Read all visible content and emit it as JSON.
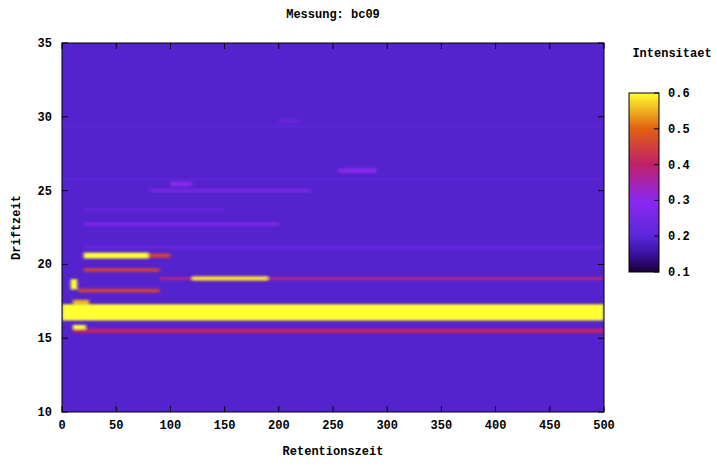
{
  "chart_data": {
    "type": "heatmap",
    "title": "Messung: bc09",
    "x_label": "Retentionszeit",
    "y_label": "Driftzeit",
    "colorbar_label": "Intensitaet",
    "xlim": [
      0,
      500
    ],
    "ylim": [
      10,
      35
    ],
    "xticks": [
      0,
      50,
      100,
      150,
      200,
      250,
      300,
      350,
      400,
      450,
      500
    ],
    "yticks": [
      10,
      15,
      20,
      25,
      30,
      35
    ],
    "colorbar_range": [
      0.1,
      0.6
    ],
    "colorbar_ticks": [
      0.1,
      0.2,
      0.3,
      0.4,
      0.5,
      0.6
    ],
    "background": 0.19,
    "cells": [
      {
        "x": [
          0,
          500
        ],
        "y": [
          25.75,
          25.85
        ],
        "value": 0.22
      },
      {
        "x": [
          0,
          500
        ],
        "y": [
          29.3,
          29.4
        ],
        "value": 0.22
      },
      {
        "x": [
          200,
          220
        ],
        "y": [
          29.6,
          29.8
        ],
        "value": 0.24
      },
      {
        "x": [
          20,
          500
        ],
        "y": [
          21.1,
          21.3
        ],
        "value": 0.23
      },
      {
        "x": [
          20,
          150
        ],
        "y": [
          23.6,
          23.8
        ],
        "value": 0.23
      },
      {
        "x": [
          20,
          200
        ],
        "y": [
          22.6,
          22.85
        ],
        "value": 0.27
      },
      {
        "x": [
          80,
          230
        ],
        "y": [
          24.9,
          25.1
        ],
        "value": 0.27
      },
      {
        "x": [
          100,
          120
        ],
        "y": [
          25.3,
          25.6
        ],
        "value": 0.3
      },
      {
        "x": [
          255,
          290
        ],
        "y": [
          26.2,
          26.5
        ],
        "value": 0.3
      },
      {
        "x": [
          10,
          500
        ],
        "y": [
          15.35,
          15.65
        ],
        "value": 0.4
      },
      {
        "x": [
          10,
          22
        ],
        "y": [
          15.6,
          15.9
        ],
        "value": 0.6
      },
      {
        "x": [
          15,
          90
        ],
        "y": [
          18.1,
          18.35
        ],
        "value": 0.45
      },
      {
        "x": [
          20,
          90
        ],
        "y": [
          19.5,
          19.75
        ],
        "value": 0.45
      },
      {
        "x": [
          20,
          80
        ],
        "y": [
          20.4,
          20.8
        ],
        "value": 0.6
      },
      {
        "x": [
          80,
          100
        ],
        "y": [
          20.45,
          20.75
        ],
        "value": 0.45
      },
      {
        "x": [
          90,
          500
        ],
        "y": [
          18.95,
          19.15
        ],
        "value": 0.38
      },
      {
        "x": [
          120,
          190
        ],
        "y": [
          18.9,
          19.2
        ],
        "value": 0.58
      },
      {
        "x": [
          8,
          14
        ],
        "y": [
          18.3,
          19.0
        ],
        "value": 0.6
      },
      {
        "x": [
          10,
          25
        ],
        "y": [
          17.3,
          17.6
        ],
        "value": 0.55
      },
      {
        "x": [
          0,
          500
        ],
        "y": [
          16.2,
          17.3
        ],
        "value": 0.6
      }
    ]
  }
}
